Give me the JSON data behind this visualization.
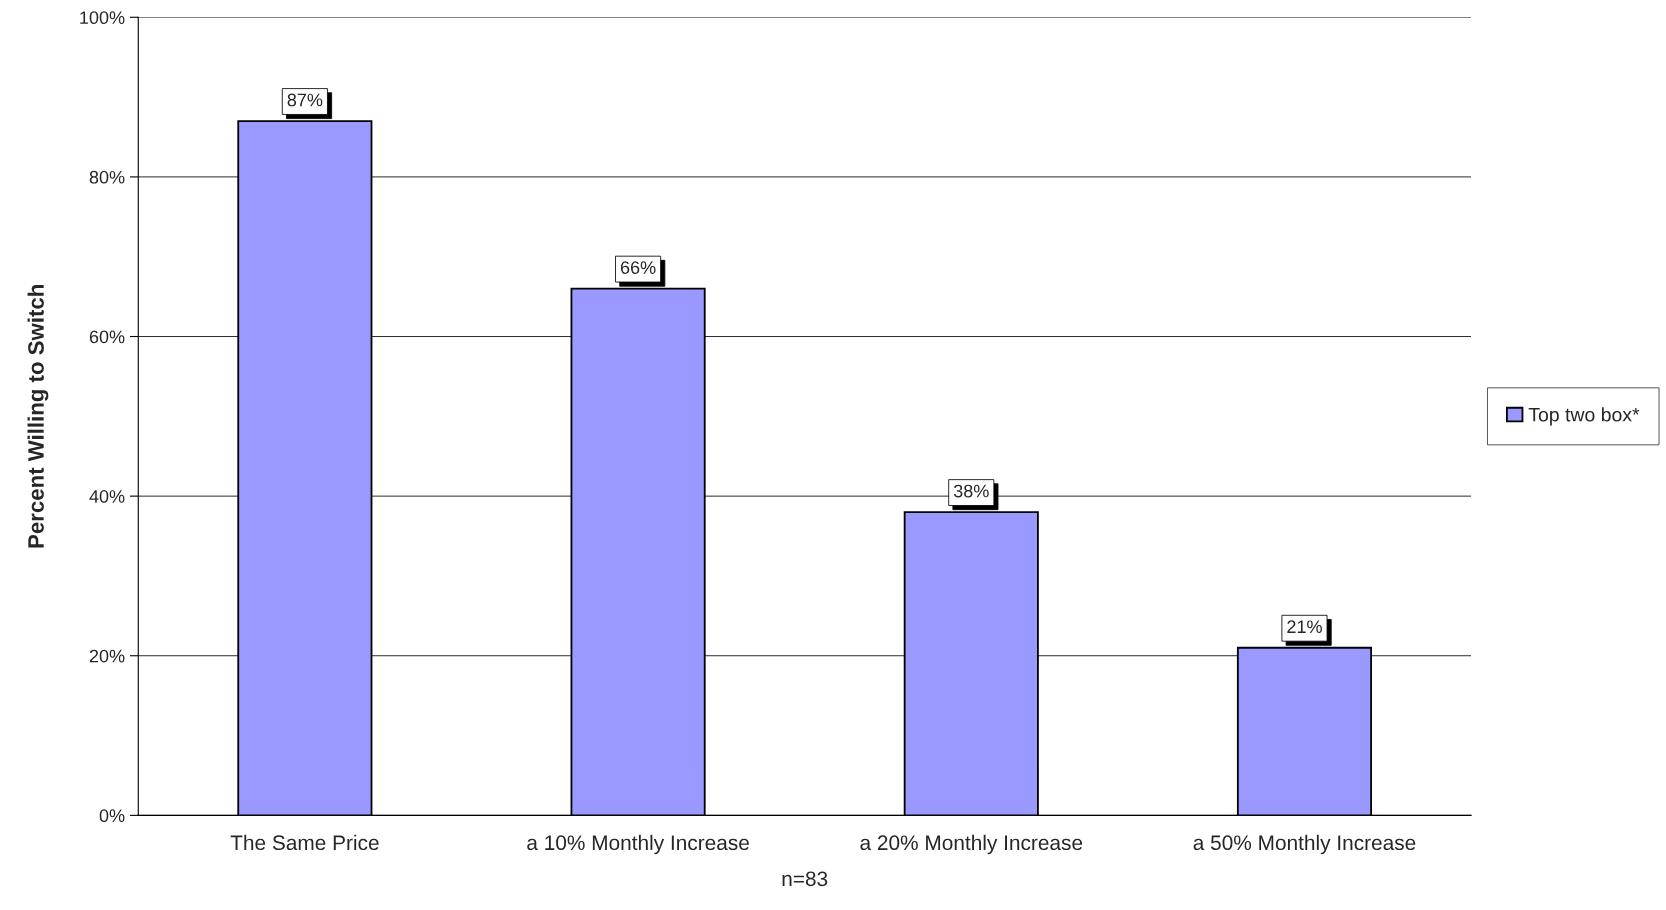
{
  "chart_data": {
    "type": "bar",
    "categories": [
      "The Same Price",
      "a 10% Monthly Increase",
      "a 20% Monthly Increase",
      "a 50% Monthly Increase"
    ],
    "series": [
      {
        "name": "Top two box*",
        "color": "#9999ff",
        "values": [
          87,
          66,
          38,
          21
        ],
        "value_labels": [
          "87%",
          "66%",
          "38%",
          "21%"
        ]
      }
    ],
    "ylabel": "Percent Willing to Switch",
    "xlabel": "n=83",
    "ylim": [
      0,
      100
    ],
    "yticks": [
      {
        "value": 0,
        "label": "0%"
      },
      {
        "value": 20,
        "label": "20%"
      },
      {
        "value": 40,
        "label": "40%"
      },
      {
        "value": 60,
        "label": "60%"
      },
      {
        "value": 80,
        "label": "80%"
      },
      {
        "value": 100,
        "label": "100%"
      }
    ],
    "grid": "y",
    "legend": "right"
  }
}
